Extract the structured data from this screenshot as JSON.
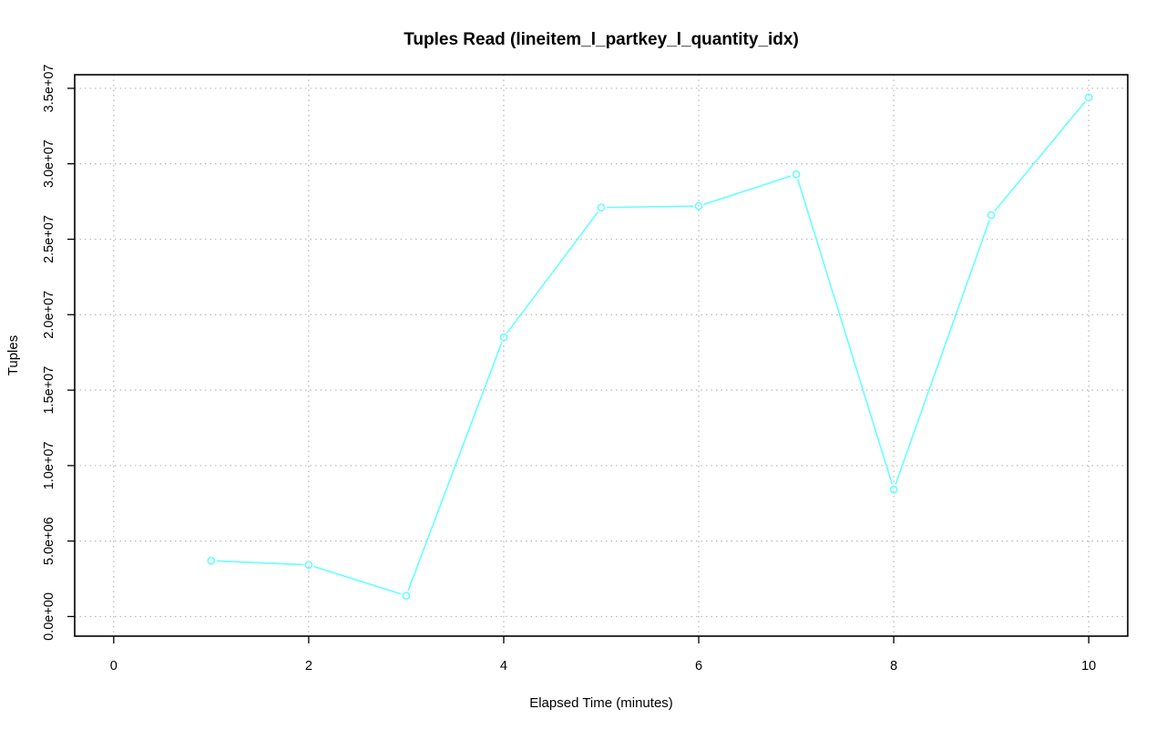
{
  "chart_data": {
    "type": "line",
    "title": "Tuples Read (lineitem_l_partkey_l_quantity_idx)",
    "xlabel": "Elapsed Time (minutes)",
    "ylabel": "Tuples",
    "x_ticks": [
      0,
      2,
      4,
      6,
      8,
      10
    ],
    "x_tick_labels": [
      "0",
      "2",
      "4",
      "6",
      "8",
      "10"
    ],
    "y_ticks": [
      0,
      5000000,
      10000000,
      15000000,
      20000000,
      25000000,
      30000000,
      35000000
    ],
    "y_tick_labels": [
      "0.0e+00",
      "5.0e+06",
      "1.0e+07",
      "1.5e+07",
      "2.0e+07",
      "2.5e+07",
      "3.0e+07",
      "3.5e+07"
    ],
    "xlim": [
      -0.4,
      10.4
    ],
    "ylim": [
      -1300000,
      35900000
    ],
    "grid": true,
    "series": [
      {
        "color": "#66ffff",
        "x": [
          1,
          2,
          3,
          4,
          5,
          6,
          7,
          8,
          9,
          10
        ],
        "y": [
          3700000,
          3420000,
          1380000,
          18500000,
          27100000,
          27200000,
          29300000,
          8420000,
          26600000,
          34400000
        ]
      }
    ]
  }
}
